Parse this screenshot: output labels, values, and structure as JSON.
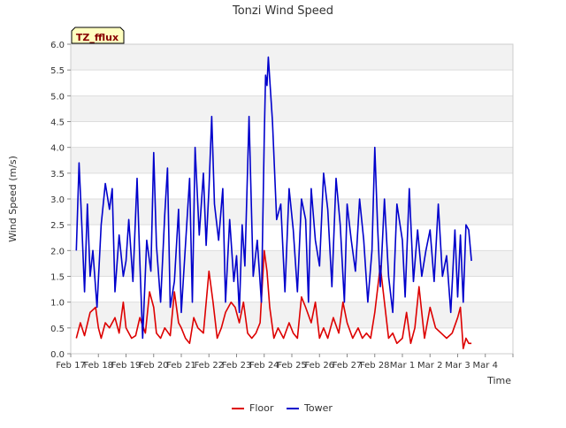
{
  "chart_data": {
    "type": "line",
    "title": "Tonzi Wind Speed",
    "xlabel": "Time",
    "ylabel": "Wind Speed (m/s)",
    "ylim": [
      0,
      6.0
    ],
    "xlim": [
      0,
      16
    ],
    "yticks": [
      0.0,
      0.5,
      1.0,
      1.5,
      2.0,
      2.5,
      3.0,
      3.5,
      4.0,
      4.5,
      5.0,
      5.5,
      6.0
    ],
    "ytick_labels": [
      "0.0",
      "0.5",
      "1.0",
      "1.5",
      "2.0",
      "2.5",
      "3.0",
      "3.5",
      "4.0",
      "4.5",
      "5.0",
      "5.5",
      "6.0"
    ],
    "xticks": [
      0,
      1,
      2,
      3,
      4,
      5,
      6,
      7,
      8,
      9,
      10,
      11,
      12,
      13,
      14,
      15,
      16
    ],
    "xtick_labels": [
      "Feb 17",
      "Feb 18",
      "Feb 19",
      "Feb 20",
      "Feb 21",
      "Feb 22",
      "Feb 23",
      "Feb 24",
      "Feb 25",
      "Feb 26",
      "Feb 27",
      "Feb 28",
      "Mar 1",
      "Mar 2",
      "Mar 3",
      "Mar 4"
    ],
    "xtick_label_positions": [
      0,
      1,
      2,
      3,
      4,
      5,
      6,
      7,
      8,
      9,
      10,
      11,
      12,
      13,
      14,
      15
    ],
    "annotation": "TZ_fflux",
    "legend_position": "bottom-center",
    "grid": true,
    "series": [
      {
        "name": "Floor",
        "color": "#dd0000",
        "x": [
          0.2,
          0.35,
          0.5,
          0.7,
          0.9,
          1.0,
          1.1,
          1.25,
          1.4,
          1.6,
          1.75,
          1.9,
          2.0,
          2.2,
          2.35,
          2.5,
          2.7,
          2.85,
          3.0,
          3.1,
          3.25,
          3.4,
          3.6,
          3.75,
          3.9,
          4.0,
          4.15,
          4.3,
          4.45,
          4.6,
          4.8,
          5.0,
          5.15,
          5.3,
          5.45,
          5.6,
          5.8,
          5.95,
          6.1,
          6.25,
          6.4,
          6.55,
          6.7,
          6.85,
          7.0,
          7.1,
          7.2,
          7.35,
          7.5,
          7.7,
          7.9,
          8.05,
          8.2,
          8.35,
          8.5,
          8.7,
          8.85,
          9.0,
          9.15,
          9.3,
          9.5,
          9.7,
          9.85,
          10.0,
          10.2,
          10.4,
          10.55,
          10.7,
          10.85,
          11.0,
          11.2,
          11.35,
          11.5,
          11.65,
          11.8,
          12.0,
          12.15,
          12.3,
          12.45,
          12.6,
          12.8,
          13.0,
          13.2,
          13.4,
          13.6,
          13.8,
          14.0,
          14.1,
          14.2,
          14.3,
          14.4,
          14.5
        ],
        "y": [
          0.3,
          0.6,
          0.35,
          0.8,
          0.9,
          0.5,
          0.3,
          0.6,
          0.5,
          0.7,
          0.4,
          1.0,
          0.5,
          0.3,
          0.35,
          0.7,
          0.4,
          1.2,
          0.9,
          0.4,
          0.3,
          0.5,
          0.35,
          1.2,
          0.6,
          0.5,
          0.3,
          0.2,
          0.7,
          0.5,
          0.4,
          1.6,
          1.0,
          0.3,
          0.5,
          0.8,
          1.0,
          0.9,
          0.6,
          1.0,
          0.4,
          0.3,
          0.4,
          0.6,
          2.0,
          1.6,
          0.9,
          0.3,
          0.5,
          0.3,
          0.6,
          0.4,
          0.3,
          1.1,
          0.9,
          0.6,
          1.0,
          0.3,
          0.5,
          0.3,
          0.7,
          0.4,
          1.0,
          0.6,
          0.3,
          0.5,
          0.3,
          0.4,
          0.3,
          0.8,
          1.7,
          1.0,
          0.3,
          0.4,
          0.2,
          0.3,
          0.8,
          0.2,
          0.5,
          1.3,
          0.3,
          0.9,
          0.5,
          0.4,
          0.3,
          0.4,
          0.7,
          0.9,
          0.1,
          0.3,
          0.2,
          0.2
        ]
      },
      {
        "name": "Tower",
        "color": "#0000cc",
        "x": [
          0.2,
          0.3,
          0.4,
          0.5,
          0.6,
          0.7,
          0.8,
          0.95,
          1.1,
          1.25,
          1.4,
          1.5,
          1.6,
          1.75,
          1.9,
          2.0,
          2.1,
          2.25,
          2.4,
          2.5,
          2.6,
          2.75,
          2.9,
          3.0,
          3.1,
          3.25,
          3.4,
          3.5,
          3.6,
          3.75,
          3.9,
          4.0,
          4.15,
          4.3,
          4.4,
          4.5,
          4.65,
          4.8,
          4.9,
          5.0,
          5.1,
          5.2,
          5.35,
          5.5,
          5.6,
          5.75,
          5.9,
          6.0,
          6.1,
          6.2,
          6.3,
          6.45,
          6.6,
          6.75,
          6.9,
          7.0,
          7.05,
          7.1,
          7.15,
          7.3,
          7.45,
          7.6,
          7.75,
          7.9,
          8.05,
          8.2,
          8.35,
          8.5,
          8.6,
          8.7,
          8.85,
          9.0,
          9.15,
          9.3,
          9.45,
          9.6,
          9.75,
          9.9,
          10.0,
          10.15,
          10.3,
          10.45,
          10.6,
          10.75,
          10.9,
          11.0,
          11.1,
          11.2,
          11.35,
          11.5,
          11.65,
          11.8,
          12.0,
          12.1,
          12.25,
          12.4,
          12.55,
          12.7,
          12.85,
          13.0,
          13.15,
          13.3,
          13.45,
          13.6,
          13.75,
          13.9,
          14.0,
          14.1,
          14.2,
          14.3,
          14.4,
          14.5
        ],
        "y": [
          2.0,
          3.7,
          2.5,
          1.2,
          2.9,
          1.5,
          2.0,
          0.9,
          2.5,
          3.3,
          2.8,
          3.2,
          1.2,
          2.3,
          1.5,
          1.8,
          2.6,
          1.4,
          3.4,
          1.8,
          0.3,
          2.2,
          1.6,
          3.9,
          2.1,
          1.0,
          2.7,
          3.6,
          0.9,
          1.4,
          2.8,
          0.8,
          2.1,
          3.4,
          1.0,
          4.0,
          2.3,
          3.5,
          2.1,
          3.2,
          4.6,
          2.9,
          2.2,
          3.2,
          1.0,
          2.6,
          1.4,
          1.9,
          0.8,
          2.5,
          1.7,
          4.6,
          1.5,
          2.2,
          1.0,
          4.2,
          5.4,
          5.2,
          5.75,
          4.5,
          2.6,
          2.9,
          1.2,
          3.2,
          2.4,
          1.2,
          3.0,
          2.6,
          1.0,
          3.2,
          2.2,
          1.7,
          3.5,
          2.8,
          1.3,
          3.4,
          2.5,
          1.0,
          2.9,
          2.2,
          1.6,
          3.0,
          2.2,
          1.0,
          2.0,
          4.0,
          2.5,
          1.3,
          3.0,
          1.5,
          0.8,
          2.9,
          2.2,
          1.1,
          3.2,
          1.4,
          2.4,
          1.5,
          2.0,
          2.4,
          1.4,
          2.9,
          1.5,
          1.9,
          0.8,
          2.4,
          1.1,
          2.3,
          1.0,
          2.5,
          2.4,
          1.8
        ]
      }
    ]
  }
}
